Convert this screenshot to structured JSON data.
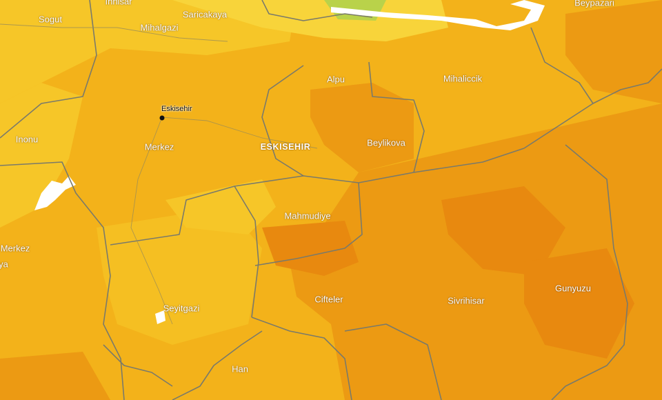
{
  "map": {
    "colors": {
      "base": "#f3b21a",
      "light": "#f6c628",
      "pale": "#f8d43a",
      "dark": "#ec9a13",
      "deep": "#e8890f",
      "green": "#b9d24a",
      "water": "#ffffff",
      "border": "#7a7a6a",
      "road": "#9a8c58"
    },
    "labels": {
      "inhisar": "Inhisar",
      "sogut": "Sogut",
      "saricakaya": "Saricakaya",
      "mihalgazi": "Mihalgazi",
      "beypazari": "Beypazari",
      "alpu": "Alpu",
      "mihaliccik": "Mihaliccik",
      "inonu": "Inonu",
      "merkez_center": "Merkez",
      "eskisehir_region": "ESKISEHIR",
      "beylikova": "Beylikova",
      "mahmudiye": "Mahmudiye",
      "merkez_west": "Merkez",
      "ya_partial": "ya",
      "seyitgazi": "Seyitgazi",
      "cifteler": "Cifteler",
      "sivrihisar": "Sivrihisar",
      "gunyuzu": "Gunyuzu",
      "han": "Han"
    },
    "city": {
      "name": "Eskisehir"
    }
  }
}
